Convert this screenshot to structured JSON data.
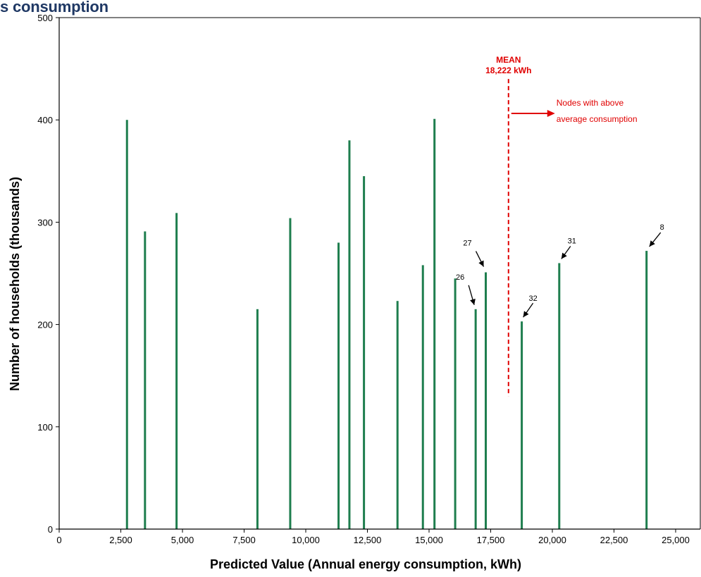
{
  "title": "s consumption",
  "chart_data": {
    "type": "bar",
    "xlabel": "Predicted Value (Annual energy consumption, kWh)",
    "ylabel": "Number of households (thousands)",
    "xlim": [
      0,
      26000
    ],
    "ylim": [
      0,
      500
    ],
    "x_ticks": [
      0,
      2500,
      5000,
      7500,
      10000,
      12500,
      15000,
      17500,
      20000,
      22500,
      25000
    ],
    "x_tick_labels": [
      "0",
      "2,500",
      "5,000",
      "7,500",
      "10,000",
      "12,500",
      "15,000",
      "17,500",
      "20,000",
      "22,500",
      "25,000"
    ],
    "y_ticks": [
      0,
      100,
      200,
      300,
      400,
      500
    ],
    "y_tick_labels": [
      "0",
      "100",
      "200",
      "300",
      "400",
      "500"
    ],
    "grid": false,
    "bar_color": "#1e7e4e",
    "points": [
      {
        "x": 2750,
        "y": 400
      },
      {
        "x": 3480,
        "y": 291
      },
      {
        "x": 4760,
        "y": 309
      },
      {
        "x": 8040,
        "y": 215
      },
      {
        "x": 9370,
        "y": 304
      },
      {
        "x": 11330,
        "y": 280
      },
      {
        "x": 11770,
        "y": 380
      },
      {
        "x": 12360,
        "y": 345
      },
      {
        "x": 13720,
        "y": 223
      },
      {
        "x": 14750,
        "y": 258
      },
      {
        "x": 15220,
        "y": 401
      },
      {
        "x": 16060,
        "y": 245
      },
      {
        "x": 16890,
        "y": 215
      },
      {
        "x": 17300,
        "y": 251
      },
      {
        "x": 18760,
        "y": 203
      },
      {
        "x": 20280,
        "y": 260
      },
      {
        "x": 23820,
        "y": 272
      }
    ],
    "mean": {
      "x": 18222,
      "line_from_y": 130,
      "line_to_y": 440,
      "color": "#e00000"
    },
    "annotations": {
      "mean_title": "MEAN",
      "mean_value": "18,222 kWh",
      "above_avg_line1": "Nodes with above",
      "above_avg_line2": "average consumption",
      "node_labels": [
        {
          "text": "27",
          "x": 17300,
          "y": 251
        },
        {
          "text": "26",
          "x": 16890,
          "y": 215
        },
        {
          "text": "32",
          "x": 18760,
          "y": 203
        },
        {
          "text": "31",
          "x": 20280,
          "y": 260
        },
        {
          "text": "8",
          "x": 23820,
          "y": 272
        }
      ]
    }
  }
}
